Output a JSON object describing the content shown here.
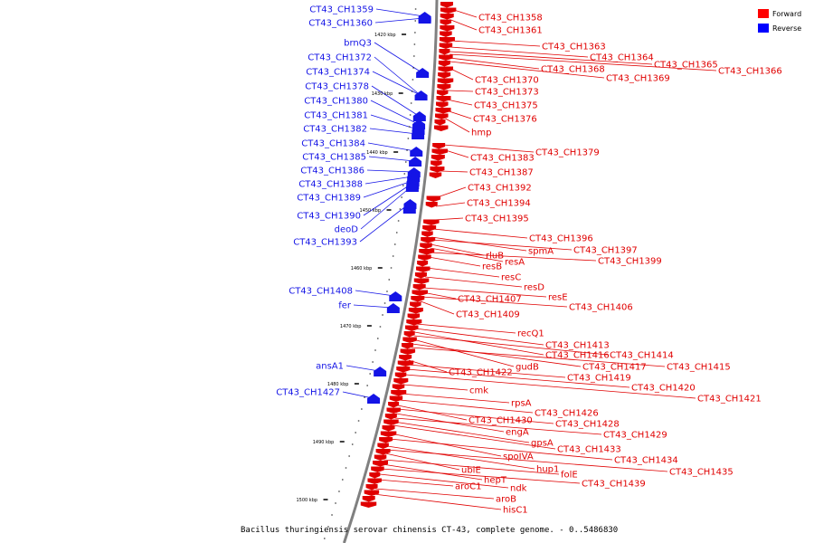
{
  "caption": "Bacillus thuringiensis serovar chinensis CT-43, complete genome. - 0..5486830",
  "legend": [
    {
      "label": "Forward",
      "color": "#ff0000"
    },
    {
      "label": "Reverse",
      "color": "#0000ff"
    }
  ],
  "colors": {
    "forward": "#e00000",
    "reverse": "#1414e6",
    "backbone": "#808080"
  },
  "kbp_ticks": [
    "1420 kbp",
    "1430 kbp",
    "1440 kbp",
    "1450 kbp",
    "1460 kbp",
    "1470 kbp",
    "1480 kbp",
    "1490 kbp",
    "1500 kbp"
  ],
  "reverse_labels": [
    "CT43_CH1359",
    "CT43_CH1360",
    "brnQ3",
    "CT43_CH1372",
    "CT43_CH1374",
    "CT43_CH1378",
    "CT43_CH1380",
    "CT43_CH1381",
    "CT43_CH1382",
    "CT43_CH1384",
    "CT43_CH1385",
    "CT43_CH1386",
    "CT43_CH1388",
    "CT43_CH1389",
    "CT43_CH1390",
    "deoD",
    "CT43_CH1393",
    "CT43_CH1408",
    "fer",
    "ansA1",
    "CT43_CH1427"
  ],
  "forward_labels": [
    "CT43_CH1358",
    "CT43_CH1361",
    "CT43_CH1363",
    "CT43_CH1364",
    "CT43_CH1365",
    "CT43_CH1366",
    "CT43_CH1368",
    "CT43_CH1369",
    "CT43_CH1370",
    "CT43_CH1373",
    "CT43_CH1375",
    "CT43_CH1376",
    "hmp",
    "CT43_CH1379",
    "CT43_CH1383",
    "CT43_CH1387",
    "CT43_CH1392",
    "CT43_CH1394",
    "CT43_CH1395",
    "CT43_CH1396",
    "spmA",
    "CT43_CH1397",
    "rluB",
    "resA",
    "CT43_CH1399",
    "resB",
    "resC",
    "resD",
    "resE",
    "CT43_CH1407",
    "CT43_CH1406",
    "CT43_CH1409",
    "recQ1",
    "CT43_CH1413",
    "CT43_CH1416",
    "CT43_CH1414",
    "gudB",
    "CT43_CH1417",
    "CT43_CH1415",
    "CT43_CH1422",
    "CT43_CH1419",
    "CT43_CH1420",
    "cmk",
    "CT43_CH1421",
    "rpsA",
    "CT43_CH1426",
    "CT43_CH1430",
    "CT43_CH1428",
    "engA",
    "CT43_CH1429",
    "gpsA",
    "CT43_CH1433",
    "spoIVA",
    "CT43_CH1434",
    "hup1",
    "ubiE",
    "CT43_CH1435",
    "folE",
    "hepT",
    "CT43_CH1439",
    "ndk",
    "aroC1",
    "aroB",
    "hisC1"
  ]
}
